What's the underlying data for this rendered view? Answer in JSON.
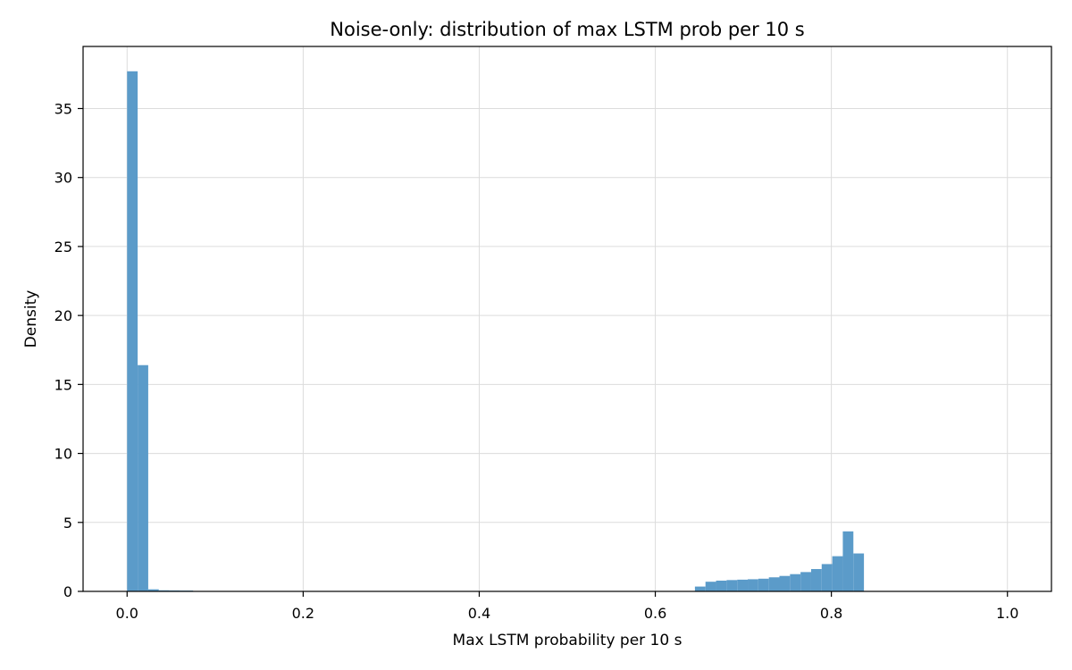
{
  "chart_data": {
    "type": "bar",
    "title": "Noise-only: distribution of max LSTM prob per 10 s",
    "xlabel": "Max LSTM probability per 10 s",
    "ylabel": "Density",
    "xlim": [
      -0.05,
      1.05
    ],
    "ylim": [
      0,
      39.5
    ],
    "xticks": [
      0.0,
      0.2,
      0.4,
      0.6,
      0.8,
      1.0
    ],
    "xtick_labels": [
      "0.0",
      "0.2",
      "0.4",
      "0.6",
      "0.8",
      "1.0"
    ],
    "yticks": [
      0,
      5,
      10,
      15,
      20,
      25,
      30,
      35
    ],
    "ytick_labels": [
      "0",
      "5",
      "10",
      "15",
      "20",
      "25",
      "30",
      "35"
    ],
    "grid": true,
    "bar_color": "#5b9bc9",
    "bins": [
      {
        "x0": 0.0,
        "x1": 0.012,
        "value": 37.7
      },
      {
        "x0": 0.012,
        "x1": 0.024,
        "value": 16.4
      },
      {
        "x0": 0.024,
        "x1": 0.036,
        "value": 0.15
      },
      {
        "x0": 0.036,
        "x1": 0.048,
        "value": 0.08
      },
      {
        "x0": 0.048,
        "x1": 0.06,
        "value": 0.07
      },
      {
        "x0": 0.06,
        "x1": 0.075,
        "value": 0.06
      },
      {
        "x0": 0.645,
        "x1": 0.657,
        "value": 0.35
      },
      {
        "x0": 0.657,
        "x1": 0.669,
        "value": 0.7
      },
      {
        "x0": 0.669,
        "x1": 0.681,
        "value": 0.78
      },
      {
        "x0": 0.681,
        "x1": 0.693,
        "value": 0.82
      },
      {
        "x0": 0.693,
        "x1": 0.705,
        "value": 0.85
      },
      {
        "x0": 0.705,
        "x1": 0.717,
        "value": 0.88
      },
      {
        "x0": 0.717,
        "x1": 0.729,
        "value": 0.92
      },
      {
        "x0": 0.729,
        "x1": 0.741,
        "value": 1.02
      },
      {
        "x0": 0.741,
        "x1": 0.753,
        "value": 1.12
      },
      {
        "x0": 0.753,
        "x1": 0.765,
        "value": 1.25
      },
      {
        "x0": 0.765,
        "x1": 0.777,
        "value": 1.4
      },
      {
        "x0": 0.777,
        "x1": 0.789,
        "value": 1.62
      },
      {
        "x0": 0.789,
        "x1": 0.801,
        "value": 1.98
      },
      {
        "x0": 0.801,
        "x1": 0.813,
        "value": 2.55
      },
      {
        "x0": 0.813,
        "x1": 0.825,
        "value": 4.35
      },
      {
        "x0": 0.825,
        "x1": 0.837,
        "value": 2.75
      }
    ]
  }
}
